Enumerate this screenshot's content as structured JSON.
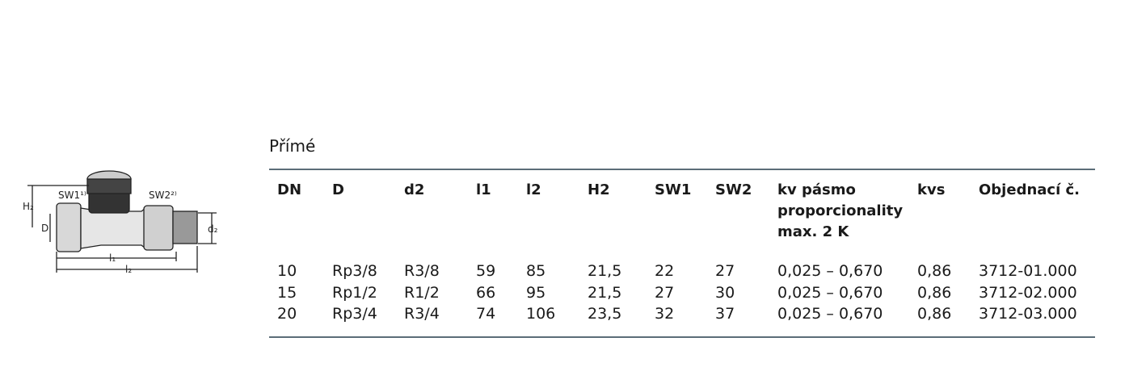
{
  "drawing": {
    "labels": {
      "sw1": "SW1¹⁾",
      "sw2": "SW2²⁾",
      "h2": "H₂",
      "d": "D",
      "d2": "d₂",
      "l1": "l₁",
      "l2": "l₂"
    }
  },
  "title": "Přímé",
  "table": {
    "header": [
      "DN",
      "D",
      "d2",
      "l1",
      "l2",
      "H2",
      "SW1",
      "SW2",
      "kv pásmo proporcionality max. 2 K",
      "kvs",
      "Objednací č."
    ],
    "rows": [
      [
        "10",
        "Rp3/8",
        "R3/8",
        "59",
        "85",
        "21,5",
        "22",
        "27",
        "0,025 – 0,670",
        "0,86",
        "3712-01.000"
      ],
      [
        "15",
        "Rp1/2",
        "R1/2",
        "66",
        "95",
        "21,5",
        "27",
        "30",
        "0,025 – 0,670",
        "0,86",
        "3712-02.000"
      ],
      [
        "20",
        "Rp3/4",
        "R3/4",
        "74",
        "106",
        "23,5",
        "32",
        "37",
        "0,025 – 0,670",
        "0,86",
        "3712-03.000"
      ]
    ]
  }
}
